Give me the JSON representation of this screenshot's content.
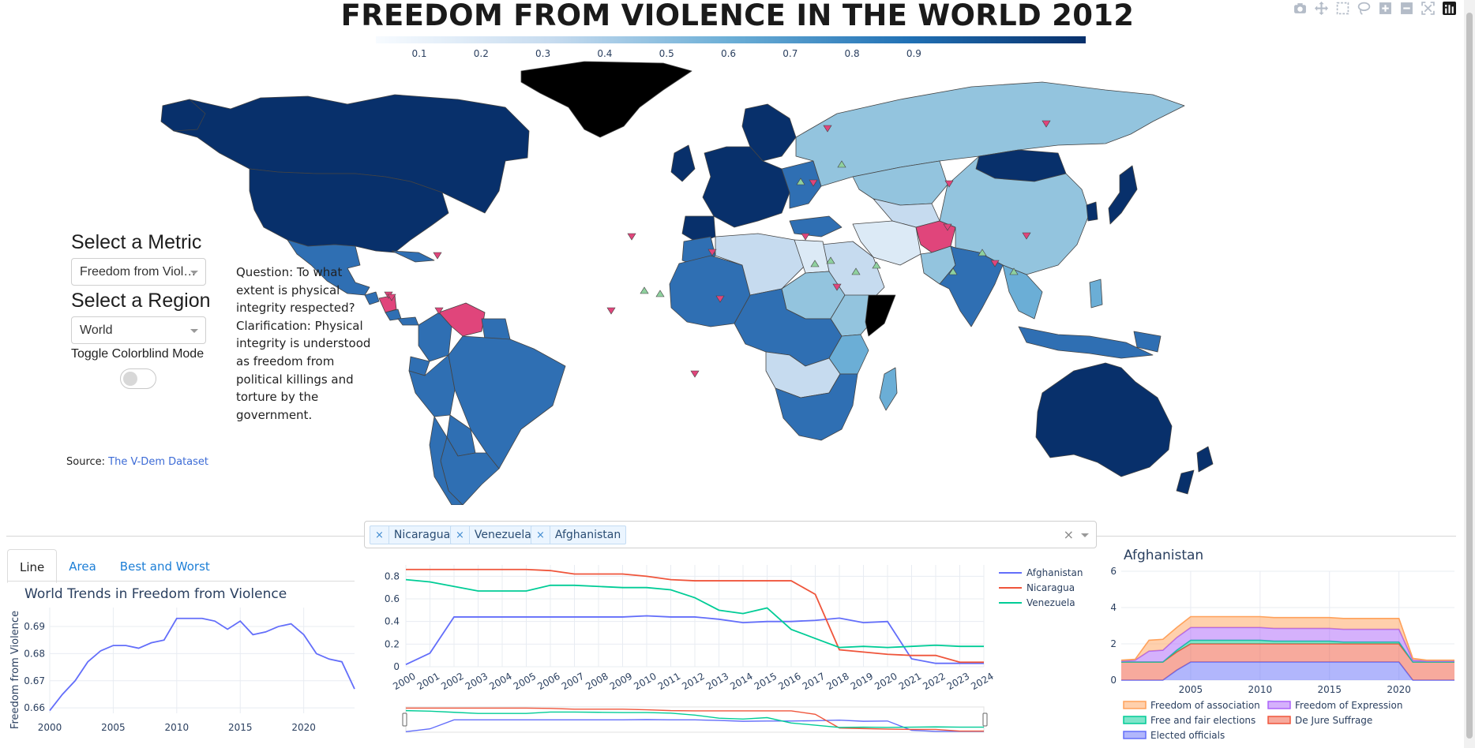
{
  "page": {
    "title": "FREEDOM FROM VIOLENCE IN THE WORLD 2012"
  },
  "modebar": {
    "icons": [
      "camera-icon",
      "pan-icon",
      "box-select-icon",
      "lasso-icon",
      "zoom-in-icon",
      "zoom-out-icon",
      "autoscale-icon",
      "plotly-logo-icon"
    ]
  },
  "colorbar": {
    "ticks": [
      "0.1",
      "0.2",
      "0.3",
      "0.4",
      "0.5",
      "0.6",
      "0.7",
      "0.8",
      "0.9"
    ],
    "color_low": "#f7fbff",
    "color_high": "#08306b"
  },
  "controls": {
    "metric_label": "Select a Metric",
    "metric_value": "Freedom from Viol…",
    "region_label": "Select a Region",
    "region_value": "World",
    "colorblind_label": "Toggle Colorblind Mode",
    "colorblind_on": false
  },
  "question": "Question: To what extent is physical integrity respected? Clarification: Physical integrity is understood as freedom from political killings and torture by the government.",
  "source": {
    "label": "Source:",
    "link_text": "The V-Dem Dataset"
  },
  "country_selector": {
    "selected": [
      "Nicaragua",
      "Venezuela",
      "Afghanistan"
    ],
    "clear_icon": "×"
  },
  "tabs": [
    {
      "label": "Line",
      "active": true
    },
    {
      "label": "Area",
      "active": false
    },
    {
      "label": "Best and Worst",
      "active": false
    }
  ],
  "highlight_colors": {
    "decline": "#e0457b",
    "improve": "#8fd19e",
    "missing": "#000000"
  },
  "chart_data": [
    {
      "type": "line",
      "title": "World Trends in Freedom from Violence",
      "ylabel": "Freedom from Violence",
      "xlabel": "",
      "x": [
        2000,
        2001,
        2002,
        2003,
        2004,
        2005,
        2006,
        2007,
        2008,
        2009,
        2010,
        2011,
        2012,
        2013,
        2014,
        2015,
        2016,
        2017,
        2018,
        2019,
        2020,
        2021,
        2022,
        2023,
        2024
      ],
      "series": [
        {
          "values": [
            0.659,
            0.665,
            0.67,
            0.677,
            0.681,
            0.683,
            0.683,
            0.682,
            0.684,
            0.685,
            0.693,
            0.693,
            0.693,
            0.692,
            0.689,
            0.692,
            0.687,
            0.688,
            0.69,
            0.691,
            0.687,
            0.68,
            0.678,
            0.677,
            0.667
          ],
          "color": "#636efa"
        }
      ],
      "x_ticks": [
        2000,
        2005,
        2010,
        2015,
        2020
      ],
      "y_ticks": [
        "0.66",
        "0.67",
        "0.68",
        "0.69"
      ],
      "xlim": [
        2000,
        2024
      ],
      "ylim": [
        0.658,
        0.697
      ],
      "grid": true
    },
    {
      "type": "line",
      "title": "",
      "x": [
        2000,
        2001,
        2002,
        2003,
        2004,
        2005,
        2006,
        2007,
        2008,
        2009,
        2010,
        2011,
        2012,
        2013,
        2014,
        2015,
        2016,
        2017,
        2018,
        2019,
        2020,
        2021,
        2022,
        2023,
        2024
      ],
      "series": [
        {
          "name": "Afghanistan",
          "color": "#636efa",
          "values": [
            0.02,
            0.12,
            0.44,
            0.44,
            0.44,
            0.44,
            0.44,
            0.44,
            0.44,
            0.44,
            0.45,
            0.44,
            0.44,
            0.42,
            0.39,
            0.4,
            0.4,
            0.41,
            0.43,
            0.39,
            0.4,
            0.07,
            0.03,
            0.03,
            0.03
          ]
        },
        {
          "name": "Nicaragua",
          "color": "#ef553b",
          "values": [
            0.86,
            0.86,
            0.86,
            0.86,
            0.86,
            0.86,
            0.85,
            0.82,
            0.82,
            0.82,
            0.8,
            0.77,
            0.76,
            0.76,
            0.76,
            0.76,
            0.76,
            0.64,
            0.15,
            0.13,
            0.11,
            0.1,
            0.1,
            0.04,
            0.04
          ]
        },
        {
          "name": "Venezuela",
          "color": "#00cc96",
          "values": [
            0.77,
            0.75,
            0.71,
            0.67,
            0.67,
            0.67,
            0.72,
            0.72,
            0.71,
            0.7,
            0.7,
            0.68,
            0.61,
            0.5,
            0.47,
            0.52,
            0.33,
            0.25,
            0.17,
            0.18,
            0.17,
            0.18,
            0.19,
            0.18,
            0.18
          ]
        }
      ],
      "x_ticks": [
        "2000",
        "2001",
        "2002",
        "2003",
        "2004",
        "2005",
        "2006",
        "2007",
        "2008",
        "2009",
        "2010",
        "2011",
        "2012",
        "2013",
        "2014",
        "2015",
        "2016",
        "2017",
        "2018",
        "2019",
        "2020",
        "2021",
        "2022",
        "2023",
        "2024"
      ],
      "y_ticks": [
        "0",
        "0.2",
        "0.4",
        "0.6",
        "0.8"
      ],
      "xlim": [
        2000,
        2024
      ],
      "ylim": [
        0,
        0.9
      ],
      "grid": true,
      "legend": "right",
      "rangeslider": true
    },
    {
      "type": "area",
      "title": "Afghanistan",
      "x": [
        2000,
        2001,
        2002,
        2003,
        2004,
        2005,
        2006,
        2007,
        2008,
        2009,
        2010,
        2011,
        2012,
        2013,
        2014,
        2015,
        2016,
        2017,
        2018,
        2019,
        2020,
        2021,
        2022,
        2023,
        2024
      ],
      "series": [
        {
          "name": "Elected officials",
          "color": "#636efa",
          "values": [
            0,
            0,
            0,
            0,
            0.55,
            1,
            1,
            1,
            1,
            1,
            1,
            1,
            1,
            1,
            1,
            1,
            1,
            1,
            1,
            1,
            1,
            0,
            0,
            0,
            0
          ]
        },
        {
          "name": "De Jure Suffrage",
          "color": "#ef553b",
          "values": [
            1,
            1,
            1,
            1,
            1,
            1,
            1,
            1,
            1,
            1,
            1,
            1,
            1,
            1,
            1,
            1,
            1,
            1,
            1,
            1,
            1,
            1,
            1,
            1,
            1
          ]
        },
        {
          "name": "Free and fair elections",
          "color": "#00cc96",
          "values": [
            0,
            0,
            0,
            0,
            0.1,
            0.2,
            0.2,
            0.2,
            0.2,
            0.2,
            0.2,
            0.15,
            0.15,
            0.15,
            0.15,
            0.15,
            0.1,
            0.1,
            0.1,
            0.1,
            0.1,
            0,
            0,
            0,
            0
          ]
        },
        {
          "name": "Freedom of Expression",
          "color": "#ab63fa",
          "values": [
            0.05,
            0.1,
            0.6,
            0.65,
            0.7,
            0.7,
            0.7,
            0.7,
            0.7,
            0.7,
            0.7,
            0.7,
            0.7,
            0.7,
            0.7,
            0.7,
            0.7,
            0.7,
            0.7,
            0.7,
            0.7,
            0.1,
            0.05,
            0.05,
            0.05
          ]
        },
        {
          "name": "Freedom of association",
          "color": "#ffa15a",
          "values": [
            0.05,
            0.05,
            0.6,
            0.6,
            0.55,
            0.6,
            0.6,
            0.6,
            0.6,
            0.6,
            0.6,
            0.6,
            0.6,
            0.6,
            0.6,
            0.6,
            0.6,
            0.6,
            0.6,
            0.6,
            0.6,
            0.1,
            0.05,
            0.05,
            0.05
          ]
        }
      ],
      "x_ticks": [
        "2005",
        "2010",
        "2015",
        "2020"
      ],
      "y_ticks": [
        "0",
        "2",
        "4",
        "6"
      ],
      "xlim": [
        2000,
        2024
      ],
      "ylim": [
        0,
        6
      ],
      "grid": true,
      "legend": "bottom"
    }
  ]
}
